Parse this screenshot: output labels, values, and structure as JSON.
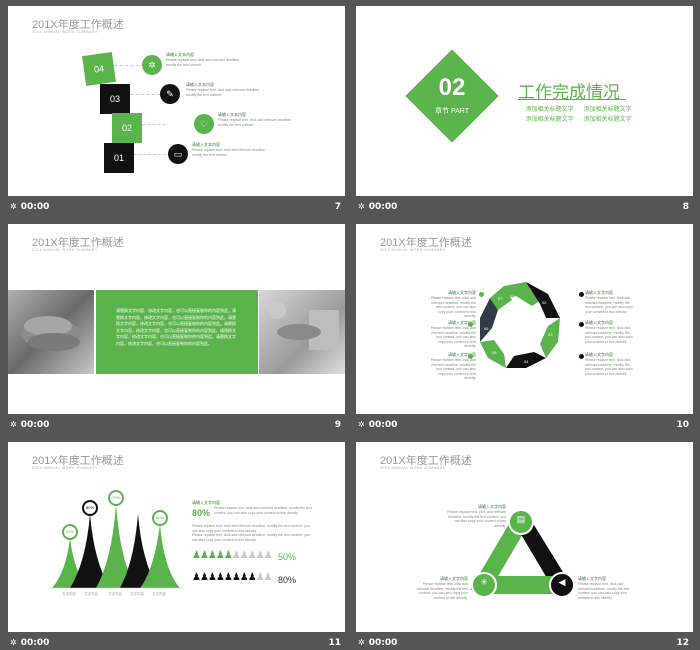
{
  "colors": {
    "accent": "#5bb34b",
    "dark": "#111111",
    "background": "#555555"
  },
  "footer_time": "00:00",
  "slides": [
    {
      "number": "7",
      "title": "201X年度工作概述",
      "subtitle": "201X ANNUAL WORK SUMMARY",
      "steps": [
        "04",
        "03",
        "02",
        "01"
      ],
      "item_label": "请输入文本内容",
      "item_text": "Please replace text, click add relevant headline, modify the text content"
    },
    {
      "number": "8",
      "section_number": "02",
      "section_label": "章节 PART",
      "heading": "工作完成情况",
      "bullets": [
        "添加相关标题文字",
        "添加相关标题文字",
        "添加相关标题文字",
        "添加相关标题文字"
      ]
    },
    {
      "number": "9",
      "title": "201X年度工作概述",
      "subtitle": "201X ANNUAL WORK SUMMARY",
      "body": "请替换文字内容，修改文字内容，也可以直接复制你的内容到此。请替换文字内容，修改文字内容，也可以直接复制你的内容到此。请替换文字内容，修改文字内容，也可以直接复制你的内容到此。请替换文字内容，修改文字内容，也可以直接复制你的内容到此。请替换文字内容，修改文字内容，也可以直接复制你的内容到此。请替换文字内容，修改文字内容，也可以直接复制你的内容到此。"
    },
    {
      "number": "10",
      "title": "201X年度工作概述",
      "subtitle": "201X ANNUAL WORK SUMMARY",
      "item_label": "请输入文字内容",
      "item_text": "Please replace text, click add relevant headline, modify the text content, you can also copy your content to this directly.",
      "segments": [
        "01",
        "02",
        "03",
        "04",
        "05",
        "06",
        "07"
      ]
    },
    {
      "number": "11",
      "title": "201X年度工作概述",
      "subtitle": "201X ANNUAL WORK SUMMARY",
      "item_label": "请输入文字内容",
      "percent_top": "80%",
      "percent_green": "50%",
      "percent_black": "80%",
      "peak_values": [
        "20%",
        "80%",
        "70%",
        "50%"
      ],
      "x_labels": [
        "文字内容",
        "文字内容",
        "文字内容",
        "文字内容",
        "文字内容"
      ],
      "item_text": "Please replace text, click add relevant headline, modify the text content, you can also copy your content to this directly."
    },
    {
      "number": "12",
      "title": "201X年度工作概述",
      "subtitle": "201X ANNUAL WORK SUMMARY",
      "item_label": "请输入文字内容",
      "item_text": "Please replace text, click add relevant headline, modify the text content, you can also copy your content to this directly."
    }
  ]
}
